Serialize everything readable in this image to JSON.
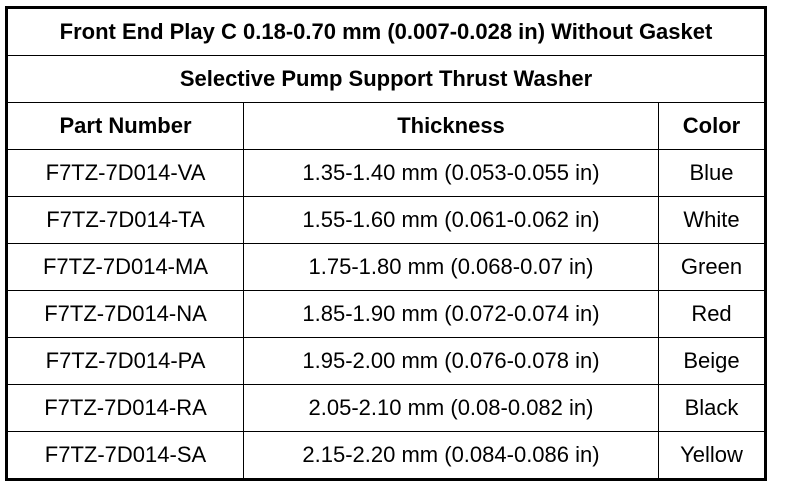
{
  "table": {
    "title": "Front End Play C 0.18-0.70 mm (0.007-0.028 in) Without Gasket",
    "subtitle": "Selective Pump Support Thrust Washer",
    "columns": [
      "Part Number",
      "Thickness",
      "Color"
    ],
    "rows": [
      [
        "F7TZ-7D014-VA",
        "1.35-1.40 mm (0.053-0.055 in)",
        "Blue"
      ],
      [
        "F7TZ-7D014-TA",
        "1.55-1.60 mm (0.061-0.062 in)",
        "White"
      ],
      [
        "F7TZ-7D014-MA",
        "1.75-1.80 mm (0.068-0.07 in)",
        "Green"
      ],
      [
        "F7TZ-7D014-NA",
        "1.85-1.90 mm (0.072-0.074 in)",
        "Red"
      ],
      [
        "F7TZ-7D014-PA",
        "1.95-2.00 mm (0.076-0.078 in)",
        "Beige"
      ],
      [
        "F7TZ-7D014-RA",
        "2.05-2.10 mm (0.08-0.082 in)",
        "Black"
      ],
      [
        "F7TZ-7D014-SA",
        "2.15-2.20 mm (0.084-0.086 in)",
        "Yellow"
      ]
    ]
  }
}
